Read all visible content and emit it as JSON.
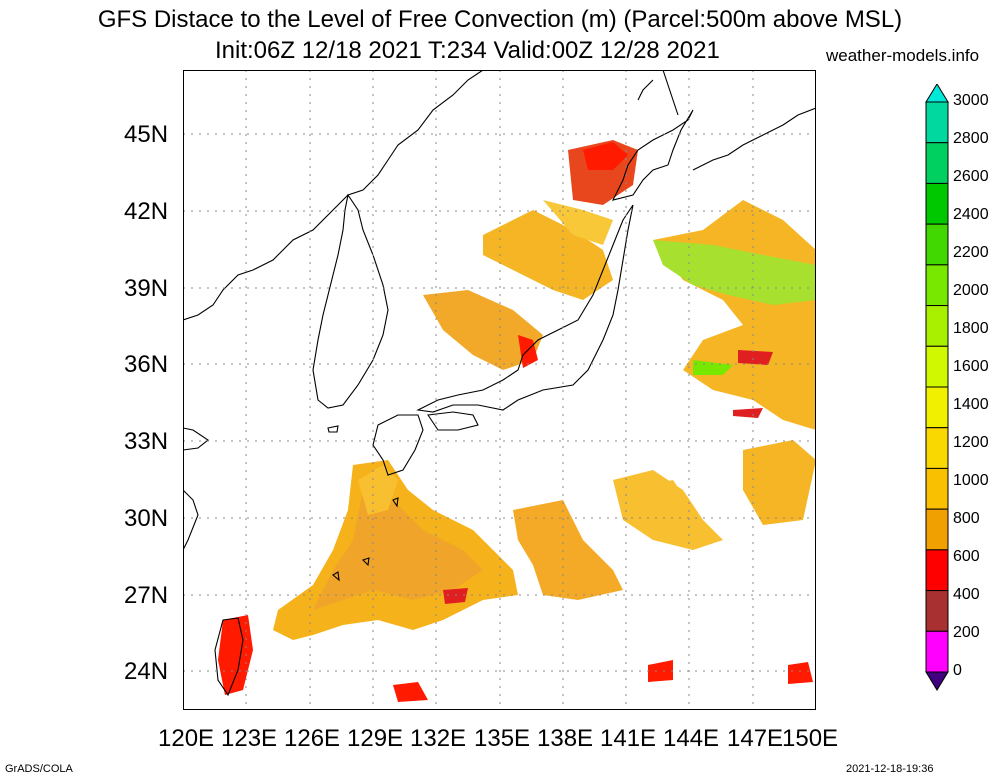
{
  "title": {
    "line1": "GFS Distace to the Level of Free Convection (m) (Parcel:500m above MSL)",
    "line2": "Init:06Z 12/18 2021 T:234 Valid:00Z 12/28 2021",
    "source": "weather-models.info"
  },
  "map": {
    "lon_range": [
      120,
      150
    ],
    "lat_range": [
      22.5,
      47.5
    ],
    "lat_labels": [
      "45N",
      "42N",
      "39N",
      "36N",
      "33N",
      "30N",
      "27N",
      "24N"
    ],
    "lon_labels": [
      "120E",
      "123E",
      "126E",
      "129E",
      "132E",
      "135E",
      "138E",
      "141E",
      "144E",
      "147E",
      "150E"
    ],
    "grid": true
  },
  "colorbar": {
    "labels": [
      "3000",
      "2800",
      "2600",
      "2400",
      "2200",
      "2000",
      "1800",
      "1600",
      "1400",
      "1200",
      "1000",
      "800",
      "600",
      "400",
      "200",
      "0"
    ],
    "colors": [
      "#00e8d8",
      "#00d8a0",
      "#00d060",
      "#00c800",
      "#40d800",
      "#78e800",
      "#a8f000",
      "#d0f800",
      "#f0f000",
      "#f8d800",
      "#f8c000",
      "#f0a000",
      "#ff0000",
      "#a83030",
      "#ff00ff",
      "#400080"
    ]
  },
  "footer": {
    "left": "GrADS/COLA",
    "right": "2021-12-18-19:36"
  }
}
